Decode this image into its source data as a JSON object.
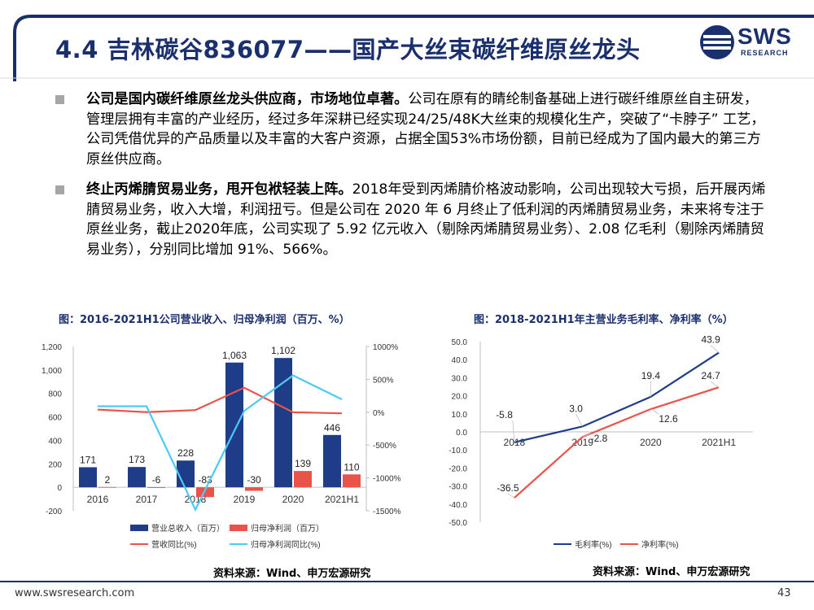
{
  "header": {
    "title": "4.4 吉林碳谷836077——国产大丝束碳纤维原丝龙头",
    "logo_text": "SWS",
    "logo_sub": "RESEARCH"
  },
  "bullets": [
    {
      "bold": "公司是国内碳纤维原丝龙头供应商，市场地位卓著。",
      "text": "公司在原有的睛纶制备基础上进行碳纤维原丝自主研发，管理层拥有丰富的产业经历，经过多年深耕已经实现24/25/48K大丝束的规模化生产，突破了“卡脖子” 工艺，公司凭借优异的产品质量以及丰富的大客户资源，占据全国53%市场份额，目前已经成为了国内最大的第三方原丝供应商。"
    },
    {
      "bold": "终止丙烯腈贸易业务，甩开包袱轻装上阵。",
      "text": "2018年受到丙烯腈价格波动影响，公司出现较大亏损，后开展丙烯腈贸易业务，收入大增，利润扭亏。但是公司在 2020 年 6 月终止了低利润的丙烯腈贸易业务，未来将专注于原丝业务，截止2020年底，公司实现了 5.92 亿元收入（剔除丙烯腈贸易业务）、2.08 亿毛利（剔除丙烯腈贸易业务），分别同比增加 91%、566%。"
    }
  ],
  "charts_meta": {
    "left_title": "图：2016-2021H1公司营业收入、归母净利润（百万、%）",
    "right_title": "图：2018-2021H1年主营业务毛利率、净利率（%）",
    "left_source": "资料来源：Wind、申万宏源研究",
    "right_source": "资料来源：Wind、申万宏源研究"
  },
  "footer": {
    "url": "www.swsresearch.com",
    "page": "43"
  },
  "colors": {
    "navy": "#1f3c88",
    "red": "#e8534a",
    "cyan": "#4dc9f6",
    "title": "#1a2f6e"
  },
  "chart_data": [
    {
      "type": "bar",
      "categories": [
        "2016",
        "2017",
        "2018",
        "2019",
        "2020",
        "2021H1"
      ],
      "series": [
        {
          "name": "营业总收入（百万）",
          "kind": "bar",
          "axis": "left",
          "values": [
            171,
            173,
            228,
            1063,
            1102,
            446
          ],
          "labels": [
            "171",
            "173",
            "228",
            "1,063",
            "1,102",
            "446"
          ]
        },
        {
          "name": "归母净利润（百万）",
          "kind": "bar",
          "axis": "left",
          "values": [
            2,
            -6,
            -83,
            -30,
            139,
            110
          ],
          "labels": [
            "2",
            "-6",
            "-83",
            "-30",
            "139",
            "110"
          ]
        },
        {
          "name": "营收同比(%)",
          "kind": "line",
          "axis": "right",
          "values": [
            40,
            1,
            32,
            373,
            -1,
            -17
          ]
        },
        {
          "name": "归母净利润同比(%)",
          "kind": "line",
          "axis": "right",
          "values": [
            90,
            90,
            -1483,
            20,
            560,
            195
          ]
        }
      ],
      "ylim_left": [
        -200,
        1200
      ],
      "yticks_left": [
        "-200",
        "0",
        "200",
        "400",
        "600",
        "800",
        "1,000",
        "1,200"
      ],
      "ylim_right": [
        -1500,
        1000
      ],
      "yticks_right": [
        "-1500%",
        "-1000%",
        "-500%",
        "0%",
        "500%",
        "1000%"
      ],
      "legend": "bottom"
    },
    {
      "type": "line",
      "x": [
        "2018",
        "2019",
        "2020",
        "2021H1"
      ],
      "series": [
        {
          "name": "毛利率(%)",
          "values": [
            -5.8,
            3.0,
            19.4,
            43.9
          ]
        },
        {
          "name": "净利率(%)",
          "values": [
            -36.5,
            -2.8,
            12.6,
            24.7
          ]
        }
      ],
      "ylim": [
        -50,
        50
      ],
      "yticks": [
        "-50.0",
        "-40.0",
        "-30.0",
        "-20.0",
        "-10.0",
        "0.0",
        "10.0",
        "20.0",
        "30.0",
        "40.0",
        "50.0"
      ],
      "legend": "bottom"
    }
  ]
}
